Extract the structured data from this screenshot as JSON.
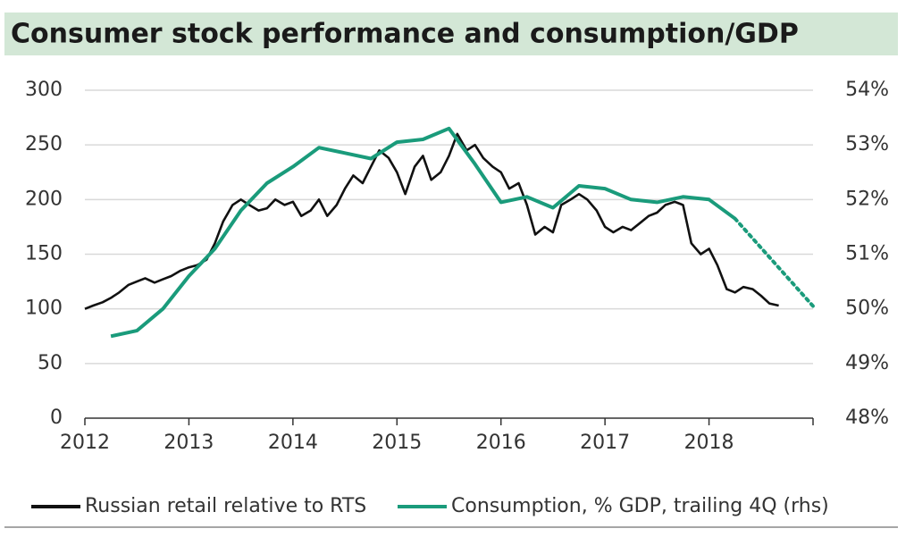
{
  "chart_data": {
    "type": "line",
    "title": "Consumer stock performance and consumption/GDP",
    "xlim": [
      2012,
      2019
    ],
    "xticks": [
      2012,
      2013,
      2014,
      2015,
      2016,
      2017,
      2018
    ],
    "ylim": [
      0,
      300
    ],
    "yticks": [
      0,
      50,
      100,
      150,
      200,
      250,
      300
    ],
    "y2lim": [
      48,
      54
    ],
    "y2ticks": [
      {
        "value": 48,
        "label": "48%"
      },
      {
        "value": 49,
        "label": "49%"
      },
      {
        "value": 50,
        "label": "50%"
      },
      {
        "value": 51,
        "label": "51%"
      },
      {
        "value": 52,
        "label": "52%"
      },
      {
        "value": 53,
        "label": "53%"
      },
      {
        "value": 54,
        "label": "54%"
      }
    ],
    "grid": true,
    "legend": "bottom",
    "series": [
      {
        "name": "Russian retail relative to RTS",
        "color": "#111111",
        "x": [
          2012.0,
          2012.08,
          2012.17,
          2012.25,
          2012.33,
          2012.42,
          2012.5,
          2012.58,
          2012.67,
          2012.75,
          2012.83,
          2012.92,
          2013.0,
          2013.08,
          2013.17,
          2013.25,
          2013.33,
          2013.42,
          2013.5,
          2013.58,
          2013.67,
          2013.75,
          2013.83,
          2013.92,
          2014.0,
          2014.08,
          2014.17,
          2014.25,
          2014.33,
          2014.42,
          2014.5,
          2014.58,
          2014.67,
          2014.75,
          2014.83,
          2014.92,
          2015.0,
          2015.08,
          2015.17,
          2015.25,
          2015.33,
          2015.42,
          2015.5,
          2015.58,
          2015.67,
          2015.75,
          2015.83,
          2015.92,
          2016.0,
          2016.08,
          2016.17,
          2016.25,
          2016.33,
          2016.42,
          2016.5,
          2016.58,
          2016.67,
          2016.75,
          2016.83,
          2016.92,
          2017.0,
          2017.08,
          2017.17,
          2017.25,
          2017.33,
          2017.42,
          2017.5,
          2017.58,
          2017.67,
          2017.75,
          2017.83,
          2017.92,
          2018.0,
          2018.08,
          2018.17,
          2018.25,
          2018.33,
          2018.42,
          2018.5,
          2018.58,
          2018.67
        ],
        "values": [
          100,
          103,
          106,
          110,
          115,
          122,
          125,
          128,
          124,
          127,
          130,
          135,
          138,
          140,
          145,
          160,
          180,
          195,
          200,
          195,
          190,
          192,
          200,
          195,
          198,
          185,
          190,
          200,
          185,
          195,
          210,
          222,
          215,
          230,
          245,
          238,
          225,
          205,
          230,
          240,
          218,
          225,
          240,
          260,
          245,
          250,
          238,
          230,
          225,
          210,
          215,
          195,
          168,
          175,
          170,
          195,
          200,
          205,
          200,
          190,
          175,
          170,
          175,
          172,
          178,
          185,
          188,
          195,
          198,
          195,
          160,
          150,
          155,
          140,
          118,
          115,
          120,
          118,
          112,
          105,
          103
        ]
      },
      {
        "name": "Consumption, % GDP, trailing 4Q (rhs)",
        "color": "#1a9b7b",
        "axis": "y2",
        "x": [
          2012.25,
          2012.5,
          2012.75,
          2013.0,
          2013.25,
          2013.5,
          2013.75,
          2014.0,
          2014.25,
          2014.5,
          2014.75,
          2015.0,
          2015.25,
          2015.5,
          2015.75,
          2016.0,
          2016.25,
          2016.5,
          2016.75,
          2017.0,
          2017.25,
          2017.5,
          2017.75,
          2018.0,
          2018.25
        ],
        "values": [
          49.5,
          49.6,
          50.0,
          50.6,
          51.1,
          51.8,
          52.3,
          52.6,
          52.95,
          52.85,
          52.75,
          53.05,
          53.1,
          53.3,
          52.65,
          51.95,
          52.05,
          51.85,
          52.25,
          52.2,
          52.0,
          51.95,
          52.05,
          52.0,
          51.65
        ],
        "projection_x": [
          2018.25,
          2019
        ],
        "projection_values": [
          51.65,
          50.05
        ]
      }
    ]
  }
}
